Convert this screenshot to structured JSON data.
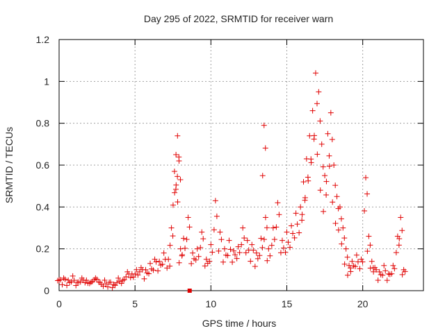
{
  "chart_data": {
    "type": "scatter",
    "title": "Day 295 of 2022, SRMTID for receiver warn",
    "xlabel": "GPS time / hours",
    "ylabel": "SRMTID / TECUs",
    "xlim": [
      0,
      24
    ],
    "ylim": [
      0,
      1.2
    ],
    "xticks": [
      0,
      5,
      10,
      15,
      20
    ],
    "xtick_labels": [
      "0",
      "5",
      "10",
      "15",
      "20"
    ],
    "yticks": [
      0,
      0.2,
      0.4,
      0.6,
      0.8,
      1,
      1.2
    ],
    "ytick_labels": [
      "0",
      "0.2",
      "0.4",
      "0.6",
      "0.8",
      "1",
      "1.2"
    ],
    "grid": true,
    "marker": "+",
    "series_color": "#e00000",
    "series": [
      {
        "name": "SRMTID",
        "x": [
          0.0,
          0.3,
          0.6,
          0.9,
          1.2,
          1.5,
          1.8,
          2.1,
          2.4,
          2.7,
          3.0,
          3.3,
          3.6,
          3.9,
          4.2,
          4.5,
          4.8,
          5.1,
          5.4,
          5.7,
          6.0,
          6.3,
          6.6,
          6.9,
          7.2,
          7.4,
          7.6,
          7.7,
          7.8,
          7.9,
          8.0,
          8.2,
          8.5,
          8.8,
          9.1,
          9.4,
          9.7,
          10.0,
          10.3,
          10.6,
          10.9,
          11.2,
          11.5,
          11.8,
          12.1,
          12.4,
          12.7,
          13.0,
          13.3,
          13.5,
          13.6,
          13.8,
          14.1,
          14.4,
          14.7,
          15.0,
          15.3,
          15.6,
          15.9,
          16.1,
          16.3,
          16.5,
          16.7,
          16.9,
          17.1,
          17.3,
          17.5,
          17.7,
          17.9,
          18.1,
          18.3,
          18.5,
          18.7,
          18.9,
          19.1,
          19.3,
          19.6,
          19.9,
          20.2,
          20.4,
          20.6,
          20.8,
          21.1,
          21.4,
          21.7,
          22.0,
          22.3,
          22.5,
          22.7
        ],
        "y": [
          0.05,
          0.06,
          0.05,
          0.07,
          0.04,
          0.06,
          0.05,
          0.04,
          0.06,
          0.04,
          0.05,
          0.04,
          0.03,
          0.06,
          0.05,
          0.09,
          0.08,
          0.1,
          0.11,
          0.1,
          0.13,
          0.15,
          0.14,
          0.18,
          0.15,
          0.3,
          0.57,
          0.65,
          0.74,
          0.62,
          0.2,
          0.25,
          0.35,
          0.18,
          0.2,
          0.28,
          0.15,
          0.22,
          0.43,
          0.28,
          0.2,
          0.24,
          0.19,
          0.21,
          0.3,
          0.24,
          0.22,
          0.18,
          0.25,
          0.79,
          0.35,
          0.2,
          0.3,
          0.42,
          0.24,
          0.28,
          0.31,
          0.37,
          0.4,
          0.52,
          0.63,
          0.74,
          0.86,
          1.04,
          0.95,
          0.7,
          0.55,
          0.75,
          0.85,
          0.6,
          0.45,
          0.4,
          0.3,
          0.2,
          0.12,
          0.14,
          0.17,
          0.15,
          0.54,
          0.26,
          0.14,
          0.11,
          0.09,
          0.12,
          0.08,
          0.12,
          0.26,
          0.35,
          0.1
        ]
      }
    ],
    "outlier": {
      "x": 8.6,
      "y": 0.0
    }
  }
}
